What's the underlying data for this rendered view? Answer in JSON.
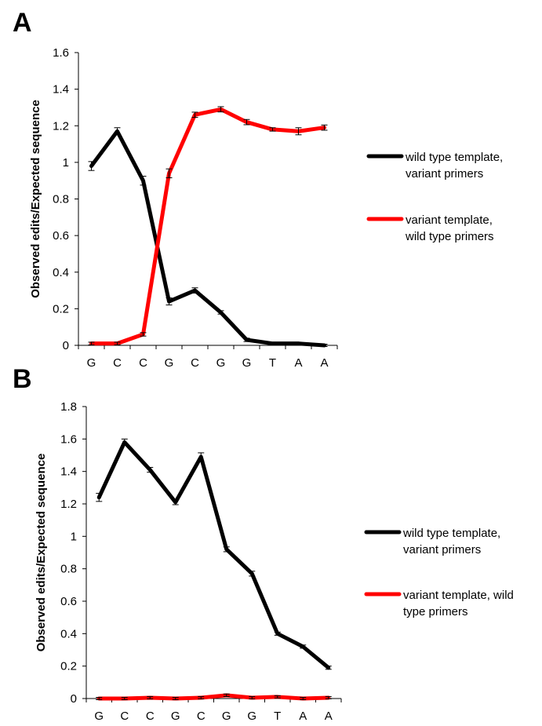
{
  "chart_data": [
    {
      "panel": "A",
      "type": "line",
      "categories": [
        "G",
        "C",
        "C",
        "G",
        "C",
        "G",
        "G",
        "T",
        "A",
        "A"
      ],
      "ylabel": "Observed edits/Expected sequence",
      "xlabel": "",
      "ylim": [
        0,
        1.6
      ],
      "yticks": [
        "0",
        "0.2",
        "0.4",
        "0.6",
        "0.8",
        "1",
        "1.2",
        "1.4",
        "1.6"
      ],
      "grid": false,
      "legend": "right",
      "series": [
        {
          "name_lines": [
            "wild type template,",
            "variant primers"
          ],
          "color": "#000000",
          "values": [
            0.98,
            1.17,
            0.9,
            0.24,
            0.3,
            0.18,
            0.03,
            0.01,
            0.01,
            0.0
          ],
          "errors": [
            0.02,
            0.015,
            0.02,
            0.015,
            0.01,
            0.005,
            0.005,
            0.003,
            0.003,
            0.002
          ]
        },
        {
          "name_lines": [
            "variant template,",
            "wild type primers"
          ],
          "color": "#ff0000",
          "values": [
            0.01,
            0.01,
            0.06,
            0.94,
            1.26,
            1.29,
            1.22,
            1.18,
            1.17,
            1.19
          ],
          "errors": [
            0.003,
            0.003,
            0.005,
            0.02,
            0.01,
            0.01,
            0.01,
            0.005,
            0.015,
            0.01
          ]
        }
      ]
    },
    {
      "panel": "B",
      "type": "line",
      "categories": [
        "G",
        "C",
        "C",
        "G",
        "C",
        "G",
        "G",
        "T",
        "A",
        "A"
      ],
      "ylabel": "Observed edits/Expected sequence",
      "xlabel": "",
      "ylim": [
        0,
        1.8
      ],
      "yticks": [
        "0",
        "0.2",
        "0.4",
        "0.6",
        "0.8",
        "1",
        "1.2",
        "1.4",
        "1.6",
        "1.8"
      ],
      "grid": false,
      "legend": "right",
      "series": [
        {
          "name_lines": [
            "wild type template,",
            "variant primers"
          ],
          "color": "#000000",
          "values": [
            1.24,
            1.58,
            1.41,
            1.21,
            1.49,
            0.92,
            0.77,
            0.4,
            0.32,
            0.19
          ],
          "errors": [
            0.02,
            0.015,
            0.01,
            0.01,
            0.02,
            0.01,
            0.01,
            0.005,
            0.005,
            0.005
          ]
        },
        {
          "name_lines": [
            "variant template, wild",
            "type primers"
          ],
          "color": "#ff0000",
          "values": [
            0.0,
            0.0,
            0.005,
            0.0,
            0.005,
            0.02,
            0.005,
            0.01,
            0.0,
            0.005
          ],
          "errors": [
            0.002,
            0.002,
            0.002,
            0.002,
            0.002,
            0.003,
            0.002,
            0.002,
            0.002,
            0.002
          ]
        }
      ]
    }
  ]
}
